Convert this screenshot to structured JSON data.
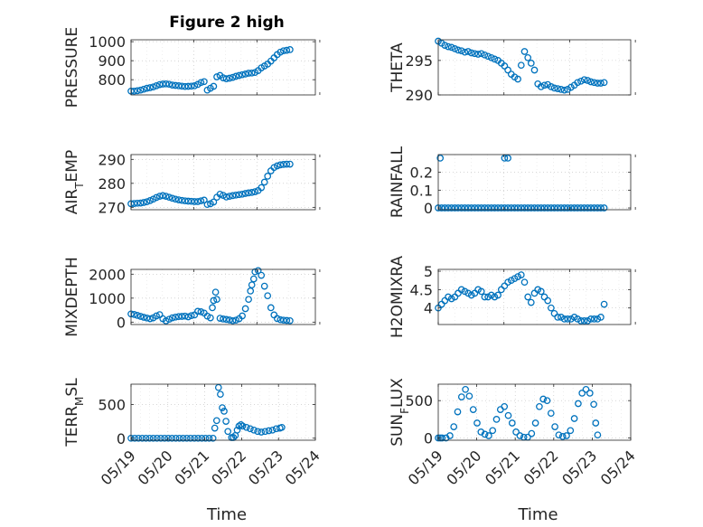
{
  "figure": {
    "title": "Figure 2 high"
  },
  "colors": {
    "marker": "#0072BD",
    "axis": "#262626",
    "grid": "#bdbdbd"
  },
  "chart_data": [
    {
      "type": "scatter",
      "ylabel": "PRESSURE",
      "xlim": [
        0,
        2.9
      ],
      "ylim": [
        720,
        1010
      ],
      "yticks": [
        800,
        900,
        1000
      ],
      "ytick_labels": [
        "800",
        "900",
        "1000"
      ],
      "grid": true,
      "x": [
        0,
        0.05,
        0.1,
        0.15,
        0.2,
        0.25,
        0.3,
        0.35,
        0.4,
        0.45,
        0.5,
        0.55,
        0.6,
        0.65,
        0.7,
        0.75,
        0.8,
        0.85,
        0.9,
        0.95,
        1.0,
        1.05,
        1.1,
        1.15,
        1.2,
        1.25,
        1.3,
        1.35,
        1.4,
        1.45,
        1.5,
        1.55,
        1.6,
        1.65,
        1.7,
        1.75,
        1.8,
        1.85,
        1.9,
        1.95,
        2.0,
        2.05,
        2.1,
        2.15,
        2.2,
        2.25,
        2.3,
        2.35,
        2.4,
        2.45,
        2.5
      ],
      "y": [
        740,
        740,
        742,
        745,
        750,
        755,
        758,
        762,
        768,
        774,
        777,
        778,
        776,
        772,
        770,
        768,
        766,
        764,
        765,
        766,
        768,
        775,
        785,
        790,
        745,
        755,
        765,
        815,
        822,
        810,
        805,
        808,
        812,
        818,
        822,
        826,
        830,
        834,
        835,
        838,
        848,
        862,
        872,
        882,
        898,
        915,
        932,
        945,
        952,
        955,
        958
      ]
    },
    {
      "type": "scatter",
      "ylabel": "THETA",
      "xlim": [
        0,
        2.9
      ],
      "ylim": [
        290,
        298
      ],
      "yticks": [
        290,
        295
      ],
      "ytick_labels": [
        "290",
        "295"
      ],
      "grid": true,
      "x": [
        0,
        0.05,
        0.1,
        0.15,
        0.2,
        0.25,
        0.3,
        0.35,
        0.4,
        0.45,
        0.5,
        0.55,
        0.6,
        0.65,
        0.7,
        0.75,
        0.8,
        0.85,
        0.9,
        0.95,
        1.0,
        1.05,
        1.1,
        1.15,
        1.2,
        1.25,
        1.3,
        1.35,
        1.4,
        1.45,
        1.5,
        1.55,
        1.6,
        1.65,
        1.7,
        1.75,
        1.8,
        1.85,
        1.9,
        1.95,
        2.0,
        2.05,
        2.1,
        2.15,
        2.2,
        2.25,
        2.3,
        2.35,
        2.4,
        2.45,
        2.5
      ],
      "y": [
        297.8,
        297.5,
        297.2,
        297.0,
        296.9,
        296.7,
        296.5,
        296.4,
        296.2,
        296.3,
        296.1,
        296.0,
        295.9,
        296.0,
        295.8,
        295.6,
        295.4,
        295.2,
        295.0,
        294.6,
        294.2,
        293.6,
        293.0,
        292.6,
        292.3,
        294.3,
        296.3,
        295.4,
        294.6,
        293.6,
        291.6,
        291.2,
        291.4,
        291.5,
        291.2,
        291.0,
        290.9,
        290.8,
        290.7,
        290.8,
        291.1,
        291.4,
        291.8,
        292.0,
        292.2,
        292.1,
        291.9,
        291.8,
        291.7,
        291.7,
        291.8
      ]
    },
    {
      "type": "scatter",
      "ylabel": "AIR_TEMP",
      "ylabel_main": "AIR",
      "ylabel_sub": "T",
      "ylabel_rest": "EMP",
      "xlim": [
        0,
        2.9
      ],
      "ylim": [
        269,
        292
      ],
      "yticks": [
        270,
        280,
        290
      ],
      "ytick_labels": [
        "270",
        "280",
        "290"
      ],
      "grid": true,
      "x": [
        0,
        0.05,
        0.1,
        0.15,
        0.2,
        0.25,
        0.3,
        0.35,
        0.4,
        0.45,
        0.5,
        0.55,
        0.6,
        0.65,
        0.7,
        0.75,
        0.8,
        0.85,
        0.9,
        0.95,
        1.0,
        1.05,
        1.1,
        1.15,
        1.2,
        1.25,
        1.3,
        1.35,
        1.4,
        1.45,
        1.5,
        1.55,
        1.6,
        1.65,
        1.7,
        1.75,
        1.8,
        1.85,
        1.9,
        1.95,
        2.0,
        2.05,
        2.1,
        2.15,
        2.2,
        2.25,
        2.3,
        2.35,
        2.4,
        2.45,
        2.5
      ],
      "y": [
        271.5,
        271.6,
        271.7,
        271.8,
        272.0,
        272.3,
        272.8,
        273.4,
        274.1,
        274.6,
        274.9,
        274.6,
        274.2,
        273.8,
        273.4,
        273.1,
        272.9,
        272.7,
        272.6,
        272.5,
        272.4,
        272.4,
        272.7,
        273.0,
        271.2,
        271.5,
        272.2,
        274.2,
        275.5,
        275.0,
        274.3,
        274.6,
        274.9,
        275.1,
        275.3,
        275.5,
        275.8,
        276.0,
        276.2,
        276.5,
        277.0,
        278.2,
        280.5,
        283.0,
        285.2,
        286.6,
        287.3,
        287.7,
        287.9,
        288.0,
        288.0
      ]
    },
    {
      "type": "scatter",
      "ylabel": "RAINFALL",
      "xlim": [
        0,
        2.9
      ],
      "ylim": [
        -0.01,
        0.3
      ],
      "yticks": [
        0,
        0.1,
        0.2
      ],
      "ytick_labels": [
        "0",
        "0.1",
        "0.2"
      ],
      "grid": true,
      "x": [
        0,
        0.05,
        0.1,
        0.15,
        0.2,
        0.25,
        0.3,
        0.35,
        0.4,
        0.45,
        0.5,
        0.55,
        0.6,
        0.65,
        0.7,
        0.75,
        0.8,
        0.85,
        0.9,
        0.95,
        1.0,
        1.05,
        1.1,
        1.15,
        1.2,
        1.25,
        1.3,
        1.35,
        1.4,
        1.45,
        1.5,
        1.55,
        1.6,
        1.65,
        1.7,
        1.75,
        1.8,
        1.85,
        1.9,
        1.95,
        2.0,
        2.05,
        2.1,
        2.15,
        2.2,
        2.25,
        2.3,
        2.35,
        2.4,
        2.45,
        2.5,
        0.03,
        1.0,
        1.05
      ],
      "y": [
        0,
        0,
        0,
        0,
        0,
        0,
        0,
        0,
        0,
        0,
        0,
        0,
        0,
        0,
        0,
        0,
        0,
        0,
        0,
        0,
        0,
        0,
        0,
        0,
        0,
        0,
        0,
        0,
        0,
        0,
        0,
        0,
        0,
        0,
        0,
        0,
        0,
        0,
        0,
        0,
        0,
        0,
        0,
        0,
        0,
        0,
        0,
        0,
        0,
        0,
        0,
        0.28,
        0.28,
        0.28
      ]
    },
    {
      "type": "scatter",
      "ylabel": "MIXDEPTH",
      "xlim": [
        0,
        2.9
      ],
      "ylim": [
        -100,
        2200
      ],
      "yticks": [
        0,
        1000,
        2000
      ],
      "ytick_labels": [
        "0",
        "1000",
        "2000"
      ],
      "grid": true,
      "x": [
        0,
        0.05,
        0.1,
        0.15,
        0.2,
        0.25,
        0.3,
        0.35,
        0.4,
        0.45,
        0.5,
        0.55,
        0.6,
        0.65,
        0.7,
        0.75,
        0.8,
        0.85,
        0.9,
        0.95,
        1.0,
        1.05,
        1.1,
        1.15,
        1.2,
        1.25,
        1.28,
        1.3,
        1.33,
        1.35,
        1.4,
        1.45,
        1.5,
        1.55,
        1.6,
        1.65,
        1.7,
        1.75,
        1.8,
        1.85,
        1.88,
        1.9,
        1.93,
        1.95,
        2.0,
        2.05,
        2.1,
        2.15,
        2.2,
        2.25,
        2.3,
        2.35,
        2.4,
        2.45,
        2.5
      ],
      "y": [
        340,
        320,
        280,
        240,
        200,
        170,
        140,
        180,
        260,
        310,
        140,
        50,
        120,
        180,
        210,
        230,
        240,
        250,
        220,
        270,
        300,
        450,
        430,
        380,
        250,
        180,
        600,
        900,
        1250,
        950,
        160,
        130,
        110,
        90,
        60,
        80,
        140,
        260,
        560,
        950,
        1300,
        1550,
        1800,
        2100,
        2150,
        1950,
        1500,
        1100,
        600,
        300,
        150,
        100,
        80,
        70,
        60
      ]
    },
    {
      "type": "scatter",
      "ylabel": "H2OMIXRA",
      "xlim": [
        0,
        2.9
      ],
      "ylim": [
        3.55,
        5.05
      ],
      "yticks": [
        4,
        4.5,
        5
      ],
      "ytick_labels": [
        "4",
        "4.5",
        "5"
      ],
      "grid": true,
      "x": [
        0,
        0.05,
        0.1,
        0.15,
        0.2,
        0.25,
        0.3,
        0.35,
        0.4,
        0.45,
        0.5,
        0.55,
        0.6,
        0.65,
        0.7,
        0.75,
        0.8,
        0.85,
        0.9,
        0.95,
        1.0,
        1.05,
        1.1,
        1.15,
        1.2,
        1.25,
        1.3,
        1.35,
        1.4,
        1.45,
        1.5,
        1.55,
        1.6,
        1.65,
        1.7,
        1.75,
        1.8,
        1.85,
        1.9,
        1.95,
        2.0,
        2.05,
        2.1,
        2.15,
        2.2,
        2.25,
        2.3,
        2.35,
        2.4,
        2.45,
        2.5
      ],
      "y": [
        4.0,
        4.1,
        4.2,
        4.3,
        4.25,
        4.3,
        4.4,
        4.5,
        4.45,
        4.4,
        4.35,
        4.4,
        4.5,
        4.45,
        4.3,
        4.3,
        4.35,
        4.3,
        4.35,
        4.5,
        4.6,
        4.7,
        4.75,
        4.8,
        4.85,
        4.9,
        4.7,
        4.3,
        4.15,
        4.4,
        4.5,
        4.45,
        4.3,
        4.2,
        4.0,
        3.85,
        3.75,
        3.75,
        3.7,
        3.7,
        3.7,
        3.75,
        3.7,
        3.65,
        3.65,
        3.65,
        3.7,
        3.7,
        3.7,
        3.75,
        4.1
      ]
    },
    {
      "type": "scatter",
      "ylabel": "TERR_MSL",
      "ylabel_main": "TERR",
      "ylabel_sub": "M",
      "ylabel_rest": "SL",
      "xlim": [
        0,
        4.95
      ],
      "ylim": [
        -30,
        800
      ],
      "yticks": [
        0,
        500
      ],
      "ytick_labels": [
        "0",
        "500"
      ],
      "xticks": [
        0,
        0.99,
        1.98,
        2.97,
        3.96,
        4.95
      ],
      "xtick_labels": [
        "05/19",
        "05/20",
        "05/21",
        "05/22",
        "05/23",
        "05/24"
      ],
      "xlabel": "Time",
      "grid": true,
      "x": [
        0,
        0.1,
        0.2,
        0.3,
        0.4,
        0.5,
        0.6,
        0.7,
        0.8,
        0.9,
        1.0,
        1.1,
        1.2,
        1.3,
        1.4,
        1.5,
        1.6,
        1.7,
        1.8,
        1.9,
        2.0,
        2.1,
        2.2,
        2.25,
        2.3,
        2.35,
        2.4,
        2.45,
        2.5,
        2.55,
        2.6,
        2.7,
        2.75,
        2.8,
        2.85,
        2.9,
        2.95,
        3.0,
        3.1,
        3.2,
        3.3,
        3.4,
        3.5,
        3.6,
        3.7,
        3.8,
        3.9,
        4.0,
        4.05
      ],
      "y": [
        0,
        0,
        0,
        0,
        0,
        0,
        0,
        0,
        0,
        0,
        0,
        0,
        0,
        0,
        0,
        0,
        0,
        0,
        0,
        0,
        0,
        0,
        0,
        150,
        260,
        750,
        650,
        450,
        400,
        250,
        100,
        10,
        10,
        40,
        120,
        180,
        200,
        180,
        160,
        140,
        120,
        100,
        90,
        100,
        110,
        120,
        140,
        150,
        160
      ]
    },
    {
      "type": "scatter",
      "ylabel": "SUN_FLUX",
      "ylabel_main": "SUN",
      "ylabel_sub": "F",
      "ylabel_rest": "LUX",
      "xlim": [
        0,
        4.95
      ],
      "ylim": [
        -30,
        720
      ],
      "yticks": [
        0,
        500
      ],
      "ytick_labels": [
        "0",
        "500"
      ],
      "xticks": [
        0,
        0.99,
        1.98,
        2.97,
        3.96,
        4.95
      ],
      "xtick_labels": [
        "05/19",
        "05/20",
        "05/21",
        "05/22",
        "05/23",
        "05/24"
      ],
      "xlabel": "Time",
      "grid": true,
      "x": [
        0,
        0.05,
        0.1,
        0.2,
        0.3,
        0.4,
        0.5,
        0.6,
        0.7,
        0.8,
        0.9,
        1.0,
        1.1,
        1.2,
        1.3,
        1.4,
        1.5,
        1.6,
        1.7,
        1.8,
        1.9,
        2.0,
        2.1,
        2.2,
        2.3,
        2.4,
        2.5,
        2.6,
        2.7,
        2.8,
        2.9,
        3.0,
        3.1,
        3.2,
        3.3,
        3.4,
        3.5,
        3.6,
        3.7,
        3.8,
        3.9,
        4.0,
        4.05,
        4.1
      ],
      "y": [
        0,
        0,
        0,
        0,
        30,
        150,
        350,
        550,
        650,
        560,
        380,
        200,
        80,
        50,
        30,
        100,
        250,
        380,
        420,
        300,
        200,
        80,
        30,
        10,
        10,
        60,
        200,
        420,
        520,
        500,
        330,
        150,
        40,
        20,
        30,
        100,
        260,
        460,
        600,
        650,
        600,
        450,
        200,
        40
      ]
    }
  ]
}
